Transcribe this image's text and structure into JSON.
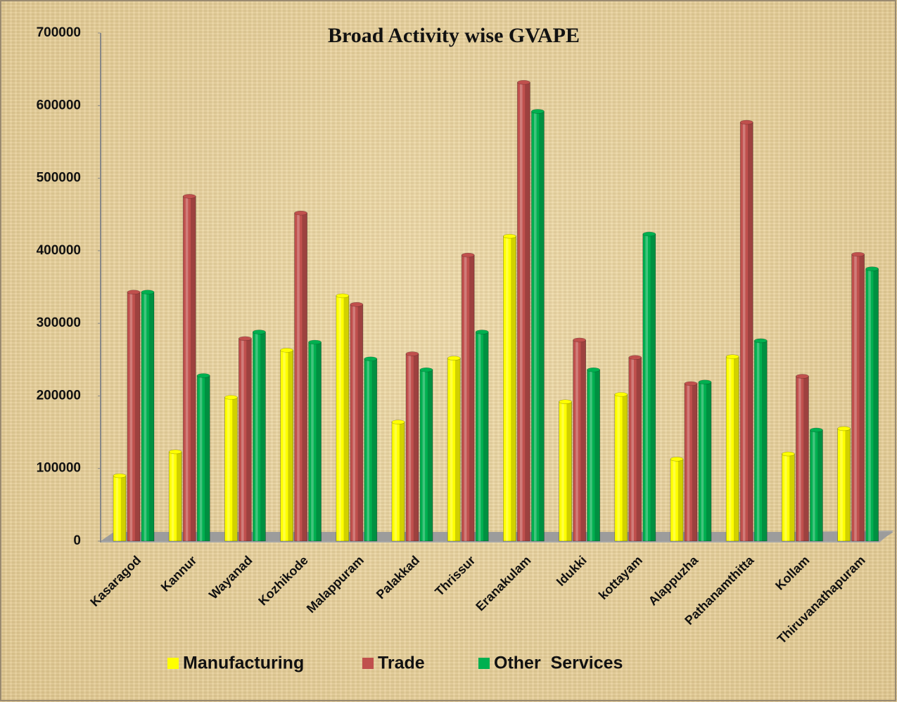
{
  "chart_data": {
    "type": "bar",
    "title": "Broad Activity wise GVAPE",
    "categories": [
      "Kasaragod",
      "Kannur",
      "Wayanad",
      "Kozhikode",
      "Malappuram",
      "Palakkad",
      "Thrissur",
      "Eranakulam",
      "Idukki",
      "kottayam",
      "Alappuzha",
      "Pathanamthitta",
      "Kollam",
      "Thiruvanathapuram"
    ],
    "series": [
      {
        "name": "Manufacturing",
        "color": "#ffff00",
        "values": [
          90000,
          123000,
          198000,
          263000,
          338000,
          164000,
          252000,
          420000,
          192000,
          202000,
          113000,
          254000,
          120000,
          155000
        ]
      },
      {
        "name": "Trade",
        "color": "#c0504d",
        "values": [
          343000,
          475000,
          279000,
          452000,
          326000,
          258000,
          394000,
          632000,
          277000,
          253000,
          217000,
          577000,
          227000,
          395000
        ]
      },
      {
        "name": "Other  Services",
        "color": "#00b050",
        "values": [
          343000,
          228000,
          288000,
          274000,
          251000,
          236000,
          288000,
          592000,
          236000,
          423000,
          219000,
          276000,
          153000,
          375000
        ]
      }
    ],
    "ylim": [
      0,
      700000
    ],
    "yticks": [
      0,
      100000,
      200000,
      300000,
      400000,
      500000,
      600000,
      700000
    ],
    "grid": false,
    "legend": "bottom"
  }
}
